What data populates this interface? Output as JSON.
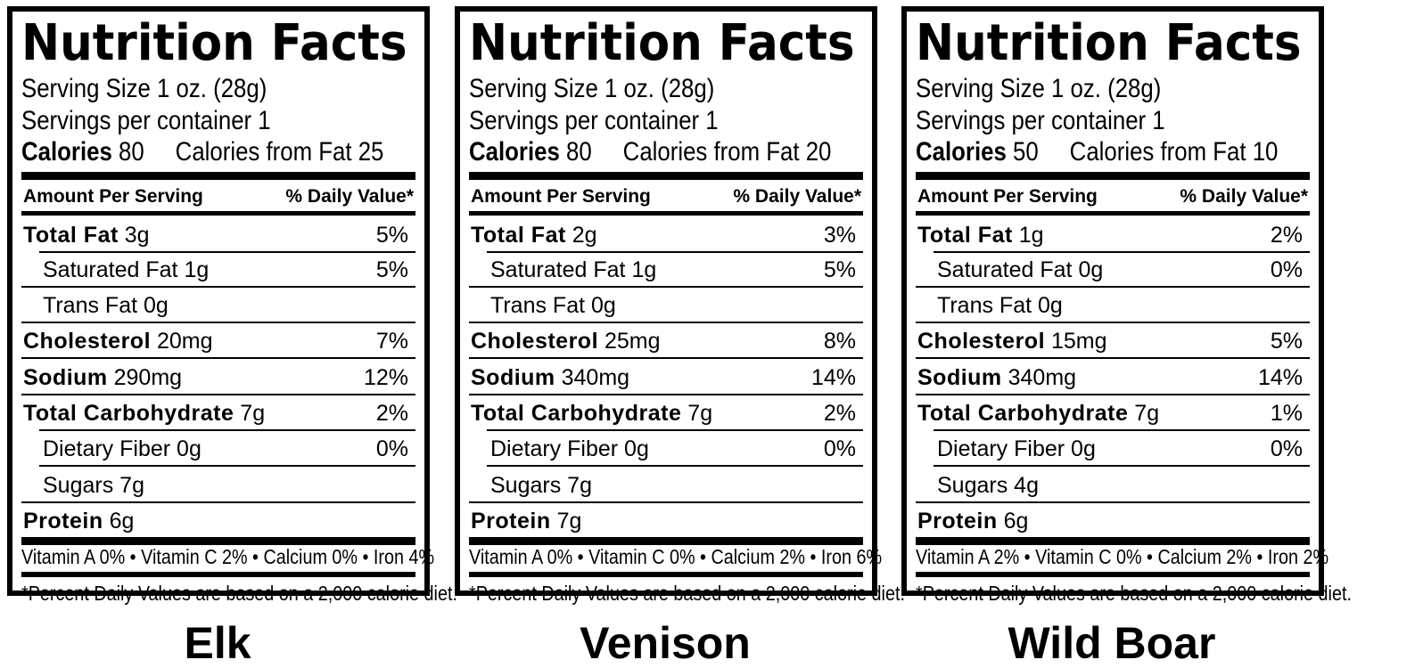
{
  "panels": [
    {
      "title": "Nutrition Facts",
      "serving_size": "Serving Size 1 oz. (28g)",
      "servings_per_container": "Servings per container 1",
      "calories_label": "Calories",
      "calories_value": "80",
      "calories_from_fat": "Calories from Fat 25",
      "amount_header": "Amount Per Serving",
      "dv_header": "% Daily Value*",
      "rows": [
        {
          "label": "Total Fat",
          "amount": "3g",
          "pct": "5%"
        },
        {
          "label": "Saturated Fat",
          "amount": "1g",
          "pct": "5%"
        },
        {
          "label": "Trans Fat",
          "amount": "0g",
          "pct": ""
        },
        {
          "label": "Cholesterol",
          "amount": "20mg",
          "pct": "7%"
        },
        {
          "label": "Sodium",
          "amount": "290mg",
          "pct": "12%"
        },
        {
          "label": "Total Carbohydrate",
          "amount": "7g",
          "pct": "2%"
        },
        {
          "label": "Dietary Fiber",
          "amount": "0g",
          "pct": "0%"
        },
        {
          "label": "Sugars",
          "amount": "7g",
          "pct": ""
        },
        {
          "label": "Protein",
          "amount": "6g",
          "pct": ""
        }
      ],
      "vitamins": "Vitamin A 0% • Vitamin C 2% • Calcium 0% • Iron 4%",
      "footnote": "*Percent Daily Values are based on a 2,000 calorie diet.",
      "caption": "Elk"
    },
    {
      "title": "Nutrition Facts",
      "serving_size": "Serving Size 1 oz. (28g)",
      "servings_per_container": "Servings per container 1",
      "calories_label": "Calories",
      "calories_value": "80",
      "calories_from_fat": "Calories from Fat 20",
      "amount_header": "Amount Per Serving",
      "dv_header": "% Daily Value*",
      "rows": [
        {
          "label": "Total Fat",
          "amount": "2g",
          "pct": "3%"
        },
        {
          "label": "Saturated Fat",
          "amount": "1g",
          "pct": "5%"
        },
        {
          "label": "Trans Fat",
          "amount": "0g",
          "pct": ""
        },
        {
          "label": "Cholesterol",
          "amount": "25mg",
          "pct": "8%"
        },
        {
          "label": "Sodium",
          "amount": "340mg",
          "pct": "14%"
        },
        {
          "label": "Total Carbohydrate",
          "amount": "7g",
          "pct": "2%"
        },
        {
          "label": "Dietary Fiber",
          "amount": "0g",
          "pct": "0%"
        },
        {
          "label": "Sugars",
          "amount": "7g",
          "pct": ""
        },
        {
          "label": "Protein",
          "amount": "7g",
          "pct": ""
        }
      ],
      "vitamins": "Vitamin A 0% • Vitamin C 0% • Calcium 2% • Iron 6%",
      "footnote": "*Percent Daily Values are based on a 2,000 calorie diet.",
      "caption": "Venison"
    },
    {
      "title": "Nutrition Facts",
      "serving_size": "Serving Size 1 oz. (28g)",
      "servings_per_container": "Servings per container 1",
      "calories_label": "Calories",
      "calories_value": "50",
      "calories_from_fat": "Calories from Fat 10",
      "amount_header": "Amount Per Serving",
      "dv_header": "% Daily Value*",
      "rows": [
        {
          "label": "Total Fat",
          "amount": "1g",
          "pct": "2%"
        },
        {
          "label": "Saturated Fat",
          "amount": "0g",
          "pct": "0%"
        },
        {
          "label": "Trans Fat",
          "amount": "0g",
          "pct": ""
        },
        {
          "label": "Cholesterol",
          "amount": "15mg",
          "pct": "5%"
        },
        {
          "label": "Sodium",
          "amount": "340mg",
          "pct": "14%"
        },
        {
          "label": "Total Carbohydrate",
          "amount": "7g",
          "pct": "1%"
        },
        {
          "label": "Dietary Fiber",
          "amount": "0g",
          "pct": "0%"
        },
        {
          "label": "Sugars",
          "amount": "4g",
          "pct": ""
        },
        {
          "label": "Protein",
          "amount": "6g",
          "pct": ""
        }
      ],
      "vitamins": "Vitamin A 2% • Vitamin C 0% • Calcium 2% • Iron 2%",
      "footnote": "*Percent Daily Values are based on a 2,000 calorie diet.",
      "caption": "Wild Boar"
    }
  ]
}
